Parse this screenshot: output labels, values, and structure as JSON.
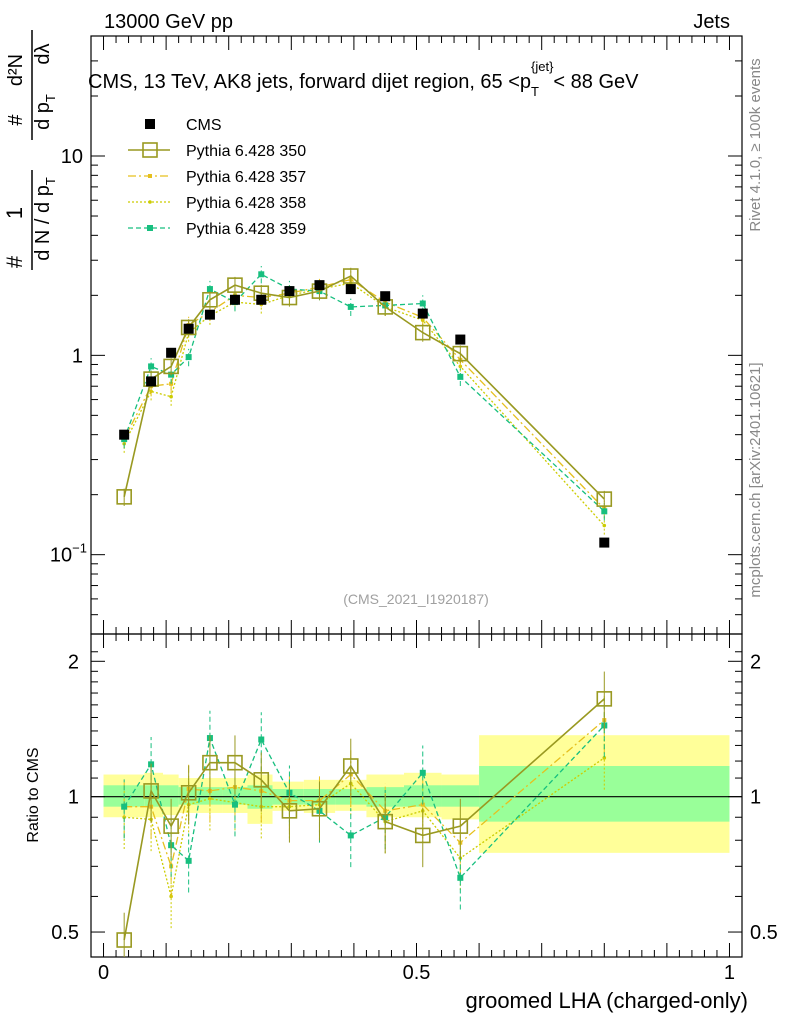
{
  "header": {
    "left": "13000 GeV pp",
    "right": "Jets",
    "side_right_top": "Rivet 4.1.0, ≥ 100k events",
    "side_right_bottom": "mcplots.cern.ch [arXiv:2401.10621]"
  },
  "colors": {
    "cms": "#000000",
    "p350": "#999921",
    "p357": "#e6c01e",
    "p358": "#cccc00",
    "p359": "#17bf7f",
    "band_outer": "#ffff99",
    "band_inner": "#99ff99"
  },
  "chart_data": [
    {
      "type": "scatter",
      "panel": "main",
      "title": "CMS, 13 TeV, AK8 jets, forward dijet region, 65 < p_T^{jet} < 88 GeV",
      "title_parts": {
        "prefix": "CMS, 13 TeV, AK8 jets, forward dijet region, 65 <",
        "p": "p",
        "sub": "T",
        "sup": "{jet}",
        "suffix": "< 88 GeV"
      },
      "ylabel_parts": {
        "one": "1",
        "hash": "#",
        "dN": "d N / d p",
        "sub": "T",
        "d2N": "d²N",
        "dpdl": "d p",
        "dl": "dλ"
      },
      "watermark": "(CMS_2021_I1920187)",
      "xlim": [
        -0.02,
        1.02
      ],
      "ylim": [
        0.04,
        40
      ],
      "yscale": "log",
      "ytick_labels": [
        {
          "value": 0.1,
          "base": "10",
          "exp": "−1"
        },
        {
          "value": 1,
          "base": "1",
          "exp": ""
        },
        {
          "value": 10,
          "base": "10",
          "exp": ""
        }
      ],
      "legend": [
        {
          "key": "cms",
          "label": "CMS"
        },
        {
          "key": "p350",
          "label": "Pythia 6.428 350"
        },
        {
          "key": "p357",
          "label": "Pythia 6.428 357"
        },
        {
          "key": "p358",
          "label": "Pythia 6.428 358"
        },
        {
          "key": "p359",
          "label": "Pythia 6.428 359"
        }
      ],
      "x": [
        0.033,
        0.076,
        0.108,
        0.136,
        0.17,
        0.21,
        0.252,
        0.297,
        0.345,
        0.395,
        0.45,
        0.51,
        0.57,
        0.8
      ],
      "series": [
        {
          "key": "cms",
          "name": "CMS",
          "values": [
            0.4,
            0.74,
            1.03,
            1.36,
            1.6,
            1.9,
            1.9,
            2.1,
            2.25,
            2.15,
            1.98,
            1.62,
            1.2,
            0.115
          ]
        },
        {
          "key": "p350",
          "name": "Pythia 6.428 350",
          "values": [
            0.195,
            0.76,
            0.88,
            1.38,
            1.9,
            2.25,
            2.05,
            1.95,
            2.1,
            2.5,
            1.75,
            1.3,
            1.02,
            0.19
          ]
        },
        {
          "key": "p357",
          "name": "Pythia 6.428 357",
          "values": [
            0.38,
            0.7,
            0.72,
            1.42,
            1.65,
            2.0,
            1.95,
            2.05,
            2.2,
            2.4,
            1.85,
            1.55,
            0.95,
            0.17
          ]
        },
        {
          "key": "p358",
          "name": "Pythia 6.428 358",
          "values": [
            0.36,
            0.66,
            0.62,
            1.3,
            1.58,
            1.85,
            1.8,
            2.0,
            2.15,
            2.3,
            1.75,
            1.5,
            0.88,
            0.14
          ]
        },
        {
          "key": "p359",
          "name": "Pythia 6.428 359",
          "values": [
            0.38,
            0.88,
            0.8,
            0.98,
            2.15,
            1.85,
            2.55,
            2.15,
            2.1,
            1.75,
            1.78,
            1.82,
            0.78,
            0.165
          ]
        }
      ]
    },
    {
      "type": "scatter",
      "panel": "ratio",
      "ylabel": "Ratio to CMS",
      "xlabel": "groomed LHA (charged-only)",
      "xlim": [
        -0.02,
        1.02
      ],
      "ylim": [
        0.44,
        2.3
      ],
      "yscale": "log",
      "ytick_labels": [
        {
          "value": 0.5,
          "label": "0.5"
        },
        {
          "value": 1,
          "label": "1"
        },
        {
          "value": 2,
          "label": "2"
        }
      ],
      "xtick_labels": [
        {
          "value": 0,
          "label": "0"
        },
        {
          "value": 0.5,
          "label": "0.5"
        },
        {
          "value": 1,
          "label": "1"
        }
      ],
      "bands": [
        {
          "x0": 0.0,
          "x1": 0.065,
          "outer": [
            0.9,
            1.12
          ],
          "inner": [
            0.95,
            1.06
          ]
        },
        {
          "x0": 0.065,
          "x1": 0.095,
          "outer": [
            0.9,
            1.13
          ],
          "inner": [
            0.95,
            1.06
          ]
        },
        {
          "x0": 0.095,
          "x1": 0.12,
          "outer": [
            0.91,
            1.12
          ],
          "inner": [
            0.95,
            1.06
          ]
        },
        {
          "x0": 0.12,
          "x1": 0.15,
          "outer": [
            0.92,
            1.1
          ],
          "inner": [
            0.96,
            1.05
          ]
        },
        {
          "x0": 0.15,
          "x1": 0.19,
          "outer": [
            0.92,
            1.1
          ],
          "inner": [
            0.96,
            1.05
          ]
        },
        {
          "x0": 0.19,
          "x1": 0.23,
          "outer": [
            0.92,
            1.1
          ],
          "inner": [
            0.96,
            1.05
          ]
        },
        {
          "x0": 0.23,
          "x1": 0.27,
          "outer": [
            0.87,
            1.12
          ],
          "inner": [
            0.94,
            1.06
          ]
        },
        {
          "x0": 0.27,
          "x1": 0.32,
          "outer": [
            0.93,
            1.08
          ],
          "inner": [
            0.96,
            1.04
          ]
        },
        {
          "x0": 0.32,
          "x1": 0.37,
          "outer": [
            0.92,
            1.09
          ],
          "inner": [
            0.96,
            1.04
          ]
        },
        {
          "x0": 0.37,
          "x1": 0.42,
          "outer": [
            0.93,
            1.09
          ],
          "inner": [
            0.96,
            1.04
          ]
        },
        {
          "x0": 0.42,
          "x1": 0.48,
          "outer": [
            0.9,
            1.12
          ],
          "inner": [
            0.95,
            1.05
          ]
        },
        {
          "x0": 0.48,
          "x1": 0.54,
          "outer": [
            0.9,
            1.13
          ],
          "inner": [
            0.95,
            1.06
          ]
        },
        {
          "x0": 0.54,
          "x1": 0.6,
          "outer": [
            0.89,
            1.12
          ],
          "inner": [
            0.95,
            1.06
          ]
        },
        {
          "x0": 0.6,
          "x1": 1.0,
          "outer": [
            0.75,
            1.37
          ],
          "inner": [
            0.88,
            1.17
          ]
        }
      ],
      "x": [
        0.033,
        0.076,
        0.108,
        0.136,
        0.17,
        0.21,
        0.252,
        0.297,
        0.345,
        0.395,
        0.45,
        0.51,
        0.57,
        0.8
      ],
      "series": [
        {
          "key": "p350",
          "name": "Pythia 6.428 350",
          "values": [
            0.48,
            1.03,
            0.86,
            1.02,
            1.19,
            1.19,
            1.09,
            0.93,
            0.94,
            1.17,
            0.88,
            0.82,
            0.86,
            1.65
          ]
        },
        {
          "key": "p357",
          "name": "Pythia 6.428 357",
          "values": [
            0.95,
            0.95,
            0.7,
            1.04,
            1.03,
            1.05,
            1.03,
            0.98,
            0.98,
            1.12,
            0.93,
            0.96,
            0.79,
            1.48
          ]
        },
        {
          "key": "p358",
          "name": "Pythia 6.428 358",
          "values": [
            0.9,
            0.89,
            0.6,
            0.96,
            0.99,
            0.97,
            0.95,
            0.95,
            0.96,
            1.07,
            0.88,
            0.93,
            0.73,
            1.22
          ]
        },
        {
          "key": "p359",
          "name": "Pythia 6.428 359",
          "values": [
            0.95,
            1.18,
            0.78,
            0.72,
            1.35,
            0.96,
            1.34,
            1.02,
            0.93,
            0.82,
            0.9,
            1.13,
            0.66,
            1.44
          ]
        }
      ]
    }
  ]
}
